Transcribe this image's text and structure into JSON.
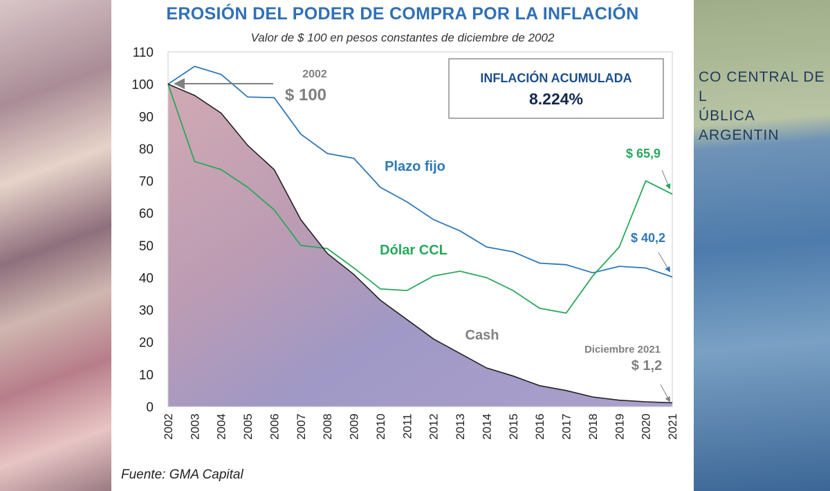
{
  "title": "EROSIÓN DEL PODER DE COMPRA POR LA INFLACIÓN",
  "subtitle": "Valor de $ 100 en pesos constantes de diciembre de 2002",
  "source": "Fuente: GMA Capital",
  "background_banner_text": [
    "CO CENTRAL DE L",
    "ÚBLICA ARGENTIN"
  ],
  "inflation_box": {
    "label": "INFLACIÓN ACUMULADA",
    "value": "8.224%"
  },
  "chart_data": {
    "type": "line",
    "title": "EROSIÓN DEL PODER DE COMPRA POR LA INFLACIÓN",
    "subtitle": "Valor de $ 100 en pesos constantes de diciembre de 2002",
    "x": [
      "2002",
      "2003",
      "2004",
      "2005",
      "2006",
      "2007",
      "2008",
      "2009",
      "2010",
      "2011",
      "2012",
      "2013",
      "2014",
      "2015",
      "2016",
      "2017",
      "2018",
      "2019",
      "2020",
      "2021"
    ],
    "ylim": [
      0,
      110
    ],
    "yticks": [
      0,
      10,
      20,
      30,
      40,
      50,
      60,
      70,
      80,
      90,
      100,
      110
    ],
    "grid": false,
    "series": [
      {
        "name": "Plazo fijo",
        "color": "#2e78b7",
        "values": [
          100,
          105.5,
          103,
          96,
          95.8,
          84.5,
          78.5,
          77,
          68,
          63.5,
          58,
          54.5,
          49.5,
          48,
          44.5,
          44,
          41.5,
          43.5,
          43,
          40.2
        ]
      },
      {
        "name": "Dólar CCL",
        "color": "#27a85a",
        "values": [
          100,
          76,
          73.5,
          68,
          61,
          50,
          49,
          43,
          36.5,
          36,
          40.5,
          42,
          40,
          36,
          30.5,
          29,
          40.5,
          49.5,
          70,
          65.9
        ]
      },
      {
        "name": "Cash",
        "color": "#222222",
        "values": [
          100,
          96.5,
          91,
          81,
          73.5,
          58,
          47.5,
          41,
          33,
          27,
          21,
          16.5,
          12,
          9.5,
          6.5,
          5,
          3,
          2,
          1.5,
          1.2
        ]
      }
    ],
    "annotations": [
      {
        "text": "2002",
        "color": "#808080"
      },
      {
        "text": "$ 100",
        "color": "#808080"
      },
      {
        "text": "$ 65,9",
        "color": "#27a85a"
      },
      {
        "text": "$ 40,2",
        "color": "#2e78b7"
      },
      {
        "text": "Diciembre 2021",
        "color": "#808080"
      },
      {
        "text": "$ 1,2",
        "color": "#808080"
      }
    ]
  }
}
